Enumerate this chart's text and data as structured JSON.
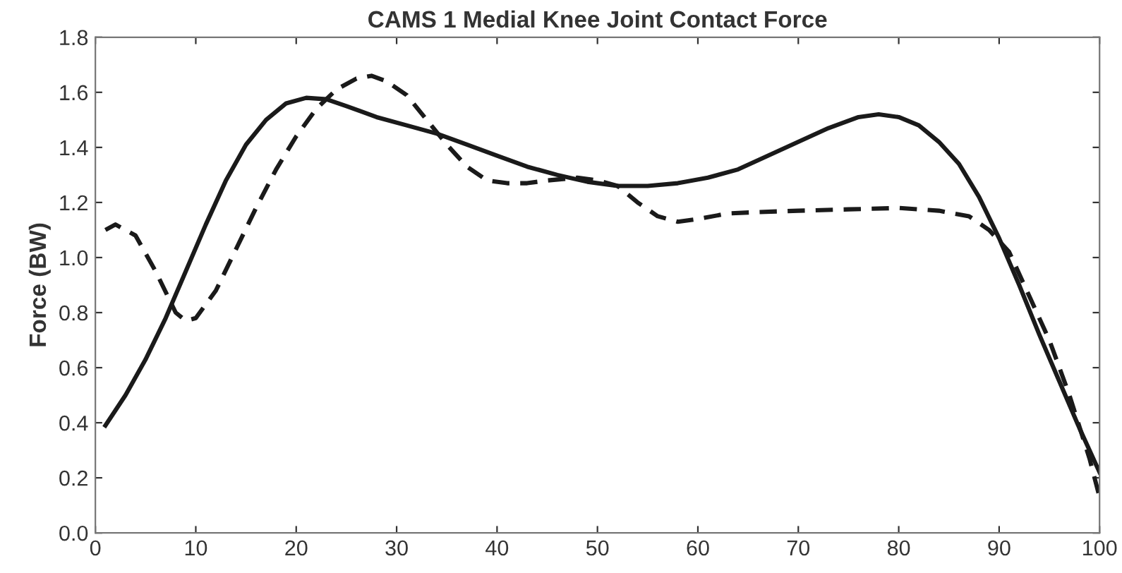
{
  "chart_data": {
    "type": "line",
    "title": "CAMS 1 Medial Knee Joint Contact Force",
    "ylabel": "Force (BW)",
    "xlim": [
      0,
      100
    ],
    "xticks": [
      0,
      10,
      20,
      30,
      40,
      50,
      60,
      70,
      80,
      90,
      100
    ],
    "ylim": [
      0,
      1.8
    ],
    "yticks": [
      {
        "value": 0,
        "label": "0.0"
      },
      {
        "value": 0.2,
        "label": "0.2"
      },
      {
        "value": 0.4,
        "label": "0.4"
      },
      {
        "value": 0.6,
        "label": "0.6"
      },
      {
        "value": 0.8,
        "label": "0.8"
      },
      {
        "value": 1.0,
        "label": "1.0"
      },
      {
        "value": 1.2,
        "label": "1.2"
      },
      {
        "value": 1.4,
        "label": "1.4"
      },
      {
        "value": 1.6,
        "label": "1.6"
      },
      {
        "value": 1.8,
        "label": "1.8"
      }
    ],
    "grid": false,
    "legend": false,
    "marker": "none",
    "series": [
      {
        "color": "#1a1a1a",
        "line_style": "solid",
        "x": [
          1,
          3,
          5,
          7,
          9,
          11,
          13,
          15,
          17,
          19,
          21,
          23,
          25,
          28,
          31,
          34,
          37,
          40,
          43,
          46,
          49,
          52,
          55,
          58,
          61,
          64,
          67,
          70,
          73,
          76,
          78,
          80,
          82,
          84,
          86,
          88,
          90,
          92,
          94,
          96,
          98,
          100
        ],
        "values": [
          0.39,
          0.5,
          0.63,
          0.78,
          0.95,
          1.12,
          1.28,
          1.41,
          1.5,
          1.56,
          1.58,
          1.575,
          1.55,
          1.51,
          1.48,
          1.45,
          1.41,
          1.37,
          1.33,
          1.3,
          1.275,
          1.26,
          1.26,
          1.27,
          1.29,
          1.32,
          1.37,
          1.42,
          1.47,
          1.51,
          1.52,
          1.51,
          1.48,
          1.42,
          1.34,
          1.22,
          1.07,
          0.9,
          0.72,
          0.55,
          0.38,
          0.22
        ]
      },
      {
        "color": "#1a1a1a",
        "line_style": "dashed",
        "x": [
          1,
          2,
          4,
          6,
          8,
          9,
          10,
          12,
          14,
          16,
          18,
          20,
          22,
          24,
          26,
          27.5,
          29,
          31,
          33,
          35,
          37,
          39,
          41,
          43,
          45,
          48,
          50,
          52,
          54,
          56,
          58,
          60,
          63,
          66,
          70,
          75,
          80,
          84,
          87,
          89,
          91,
          93,
          95,
          97,
          99,
          100
        ],
        "values": [
          1.1,
          1.12,
          1.08,
          0.95,
          0.8,
          0.77,
          0.78,
          0.88,
          1.03,
          1.18,
          1.32,
          1.44,
          1.54,
          1.61,
          1.65,
          1.66,
          1.64,
          1.59,
          1.5,
          1.41,
          1.33,
          1.28,
          1.27,
          1.27,
          1.28,
          1.29,
          1.28,
          1.26,
          1.2,
          1.15,
          1.13,
          1.14,
          1.16,
          1.165,
          1.17,
          1.175,
          1.18,
          1.17,
          1.15,
          1.1,
          1.02,
          0.86,
          0.7,
          0.5,
          0.27,
          0.13
        ]
      }
    ]
  }
}
